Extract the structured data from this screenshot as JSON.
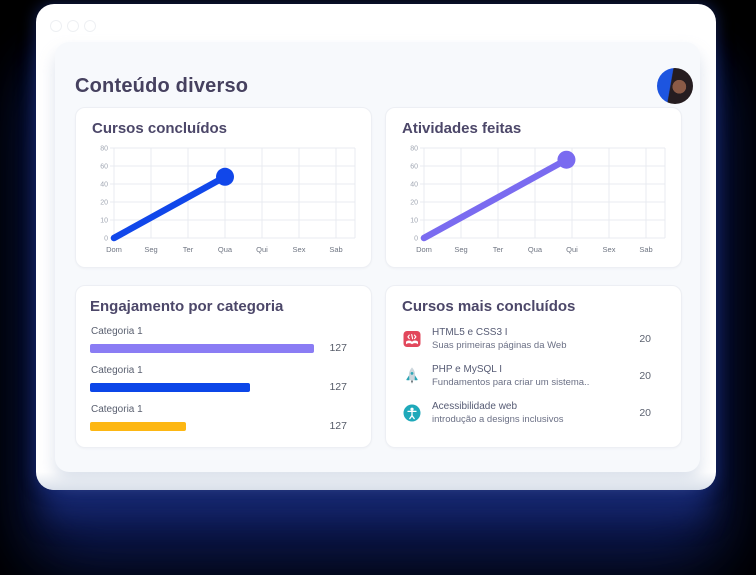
{
  "page": {
    "title": "Conteúdo diverso"
  },
  "window": {
    "control_dots": 3
  },
  "header": {
    "avatar": "user-avatar"
  },
  "colors": {
    "background": "#000000",
    "window_glow": "#16276e",
    "panel_bg": "#f7f9fc",
    "card_bg": "#ffffff",
    "title_text": "#46415f",
    "blue_accent": "#1147ea",
    "purple_accent": "#7a6bf0",
    "bar_purple": "#8a7cf4",
    "bar_blue": "#0c46e8",
    "bar_yellow": "#fdb713"
  },
  "chart_data": [
    {
      "type": "line",
      "title": "Cursos concluídos",
      "categories": [
        "Dom",
        "Seg",
        "Ter",
        "Qua",
        "Qui",
        "Sex",
        "Sab"
      ],
      "y_ticks": [
        0,
        10,
        20,
        40,
        60,
        80
      ],
      "grid": true,
      "legend": "none",
      "series": [
        {
          "name": "Cursos concluídos",
          "color": "#1147ea",
          "points": [
            [
              0,
              0
            ],
            [
              3,
              48
            ]
          ]
        }
      ]
    },
    {
      "type": "line",
      "title": "Atividades feitas",
      "categories": [
        "Dom",
        "Seg",
        "Ter",
        "Qua",
        "Qui",
        "Sex",
        "Sab"
      ],
      "y_ticks": [
        0,
        10,
        20,
        40,
        60,
        80
      ],
      "grid": true,
      "legend": "none",
      "series": [
        {
          "name": "Atividades feitas",
          "color": "#7a6bf0",
          "points": [
            [
              0,
              0
            ],
            [
              3.85,
              67
            ]
          ]
        }
      ]
    },
    {
      "type": "bar",
      "title": "Engajamento por categoria",
      "orientation": "horizontal",
      "items": [
        {
          "label": "Categoria 1",
          "value": "127",
          "color": "#8a7cf4",
          "width_pct": 98
        },
        {
          "label": "Categoria 1",
          "value": "127",
          "color": "#0c46e8",
          "width_pct": 70
        },
        {
          "label": "Categoria 1",
          "value": "127",
          "color": "#fdb713",
          "width_pct": 42
        }
      ]
    },
    {
      "type": "table",
      "title": "Cursos mais concluídos",
      "rows": [
        {
          "icon": "html-course-icon",
          "title": "HTML5 e CSS3 I",
          "subtitle": "Suas primeiras páginas da Web",
          "value": "20"
        },
        {
          "icon": "php-course-icon",
          "title": "PHP e MySQL I",
          "subtitle": "Fundamentos para criar um sistema..",
          "value": "20"
        },
        {
          "icon": "accessibility-course-icon",
          "title": "Acessibilidade web",
          "subtitle": "introdução a designs inclusivos",
          "value": "20"
        }
      ]
    }
  ]
}
